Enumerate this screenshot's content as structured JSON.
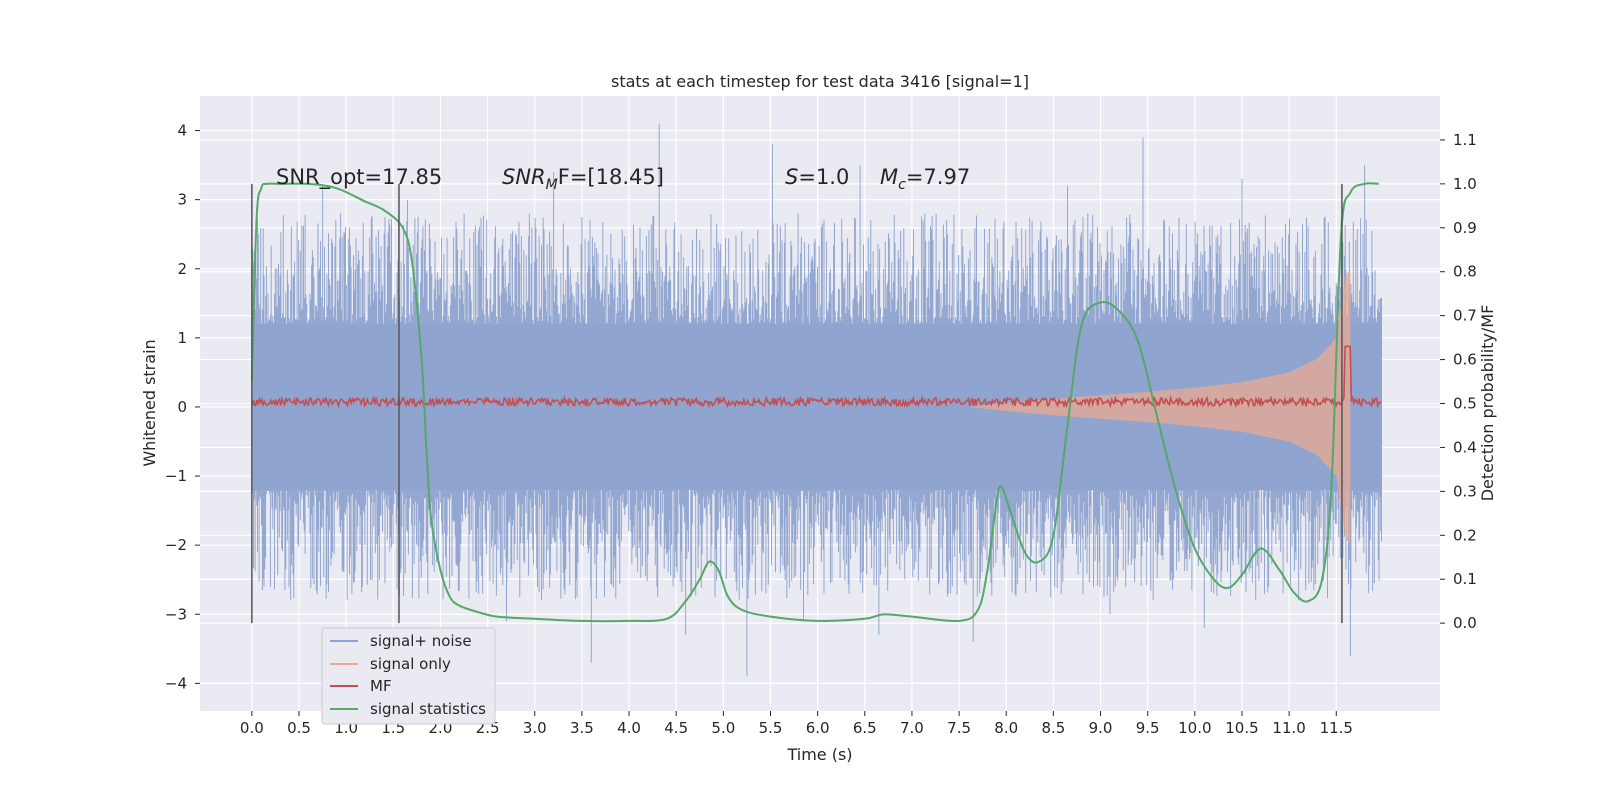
{
  "chart_data": {
    "type": "line",
    "title": "stats at each timestep for test data 3416 [signal=1]",
    "xlabel": "Time (s)",
    "ylabel": "Whitened strain",
    "y2label": "Detection probability/MF",
    "xlim": [
      -0.55,
      12.6
    ],
    "ylim": [
      -4.4,
      4.5
    ],
    "y2lim": [
      -0.2,
      1.2
    ],
    "x_ticks": [
      "0.0",
      "0.5",
      "1.0",
      "1.5",
      "2.0",
      "2.5",
      "3.0",
      "3.5",
      "4.0",
      "4.5",
      "5.0",
      "5.5",
      "6.0",
      "6.5",
      "7.0",
      "7.5",
      "8.0",
      "8.5",
      "9.0",
      "9.5",
      "10.0",
      "10.5",
      "11.0",
      "11.5"
    ],
    "y_ticks": [
      "−4",
      "−3",
      "−2",
      "−1",
      "0",
      "1",
      "2",
      "3",
      "4"
    ],
    "y2_ticks": [
      "0.0",
      "0.1",
      "0.2",
      "0.3",
      "0.4",
      "0.5",
      "0.6",
      "0.7",
      "0.8",
      "0.9",
      "1.0",
      "1.1"
    ],
    "grid": true,
    "legend_placement": "lower-left",
    "annotations": {
      "snr_opt": "SNR_opt=17.85",
      "snr_mf_main": "SNR",
      "snr_mf_sub": "M",
      "snr_mf_tail": "F=[18.45]",
      "s_main": "S",
      "s_tail": "=1.0",
      "mc_main": "M",
      "mc_sub": "c",
      "mc_tail": "=7.97"
    },
    "vertical_markers_x": [
      0.0,
      1.56,
      11.56
    ],
    "series": [
      {
        "name": "signal+ noise",
        "color": "#8ea3cf",
        "kind": "noise",
        "x_range": [
          0.0,
          11.98
        ],
        "envelope_y": [
          -2.1,
          2.1
        ],
        "spikes": [
          [
            0.02,
            2.1
          ],
          [
            0.7,
            2.6
          ],
          [
            0.75,
            3.2
          ],
          [
            1.65,
            3.0
          ],
          [
            2.7,
            -3.1
          ],
          [
            3.2,
            3.4
          ],
          [
            3.6,
            -3.7
          ],
          [
            4.32,
            4.1
          ],
          [
            4.6,
            -3.3
          ],
          [
            5.25,
            -3.9
          ],
          [
            5.52,
            3.8
          ],
          [
            5.85,
            -3.1
          ],
          [
            6.45,
            3.5
          ],
          [
            6.65,
            -3.3
          ],
          [
            7.65,
            -3.4
          ],
          [
            8.65,
            3.2
          ],
          [
            9.1,
            -3.0
          ],
          [
            9.45,
            3.9
          ],
          [
            10.1,
            -3.2
          ],
          [
            10.5,
            3.3
          ],
          [
            11.1,
            -2.8
          ],
          [
            11.65,
            -3.6
          ],
          [
            11.8,
            3.5
          ]
        ]
      },
      {
        "name": "signal only",
        "color": "#e8a990",
        "kind": "chirp",
        "x": [
          7.6,
          8.0,
          8.5,
          9.0,
          9.5,
          10.0,
          10.5,
          11.0,
          11.3,
          11.5,
          11.6,
          11.65
        ],
        "amplitude": [
          0.0,
          0.06,
          0.12,
          0.17,
          0.22,
          0.28,
          0.36,
          0.5,
          0.7,
          1.0,
          1.9,
          2.0
        ]
      },
      {
        "name": "MF",
        "color": "#c44e52",
        "kind": "mf",
        "axis": "right",
        "x_range": [
          0.0,
          11.98
        ],
        "baseline": 0.5,
        "peak": [
          11.62,
          0.63
        ]
      },
      {
        "name": "signal statistics",
        "color": "#55a868",
        "kind": "line",
        "axis": "right",
        "x": [
          0.0,
          0.05,
          0.1,
          0.15,
          0.3,
          0.6,
          0.9,
          1.2,
          1.4,
          1.6,
          1.7,
          1.8,
          1.85,
          1.9,
          2.0,
          2.1,
          2.2,
          2.4,
          2.6,
          3.0,
          3.5,
          4.0,
          4.4,
          4.6,
          4.75,
          4.85,
          4.95,
          5.05,
          5.2,
          5.5,
          6.0,
          6.5,
          6.7,
          7.0,
          7.5,
          7.7,
          7.8,
          7.9,
          7.95,
          8.05,
          8.2,
          8.35,
          8.5,
          8.65,
          8.8,
          9.0,
          9.2,
          9.4,
          9.6,
          9.8,
          10.0,
          10.2,
          10.35,
          10.5,
          10.7,
          10.9,
          11.05,
          11.2,
          11.35,
          11.45,
          11.55,
          11.65,
          11.8,
          11.95
        ],
        "y": [
          0.55,
          0.92,
          0.99,
          1.0,
          1.0,
          1.0,
          0.99,
          0.96,
          0.94,
          0.9,
          0.82,
          0.6,
          0.4,
          0.24,
          0.12,
          0.06,
          0.04,
          0.025,
          0.015,
          0.01,
          0.005,
          0.005,
          0.01,
          0.05,
          0.1,
          0.14,
          0.12,
          0.06,
          0.03,
          0.015,
          0.005,
          0.01,
          0.02,
          0.015,
          0.005,
          0.03,
          0.12,
          0.28,
          0.31,
          0.25,
          0.16,
          0.14,
          0.2,
          0.45,
          0.68,
          0.73,
          0.71,
          0.64,
          0.47,
          0.3,
          0.17,
          0.1,
          0.08,
          0.11,
          0.17,
          0.12,
          0.07,
          0.05,
          0.1,
          0.32,
          0.88,
          0.98,
          1.0,
          1.0
        ]
      }
    ]
  }
}
